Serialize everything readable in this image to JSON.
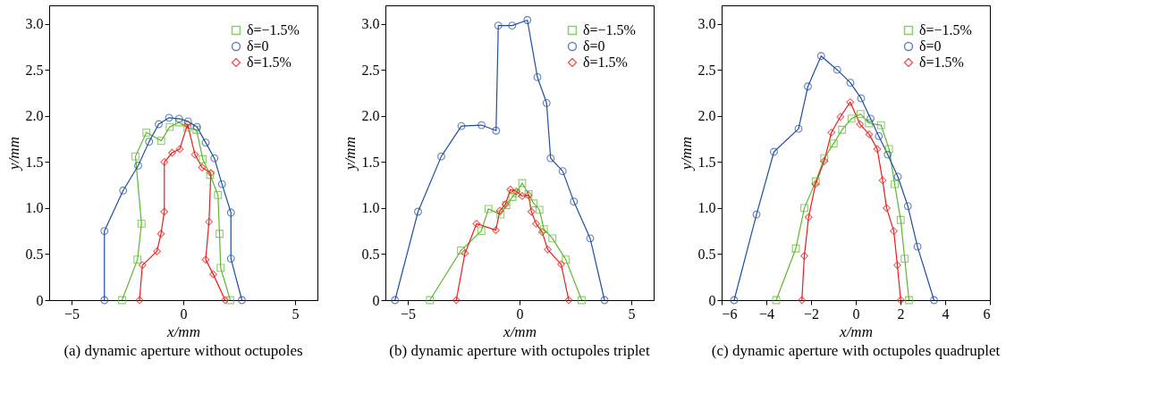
{
  "chart_data": [
    {
      "type": "line",
      "xlabel": "x/mm",
      "ylabel": "y/mm",
      "xlim": [
        -6,
        6
      ],
      "ylim": [
        0,
        3.2
      ],
      "xticks": [
        -5,
        0,
        5
      ],
      "yticks": [
        0,
        0.5,
        {
          "value": 1,
          "label": "1.0"
        },
        1.5,
        {
          "value": 2,
          "label": "2.0"
        },
        2.5,
        {
          "value": 3,
          "label": "3.0"
        }
      ],
      "grid": false,
      "legend": "top right",
      "line_style": "solid",
      "annotations": [
        "(a) dynamic aperture without octupoles"
      ],
      "series": [
        {
          "name": "δ=−1.5%",
          "color": "#5cb82e",
          "marker": "square",
          "x": [
            -2.74,
            -2.05,
            -1.87,
            -2.14,
            -1.65,
            -0.99,
            -0.61,
            -0.19,
            0.19,
            0.59,
            0.87,
            1.2,
            1.55,
            1.62,
            1.67,
            2.1
          ],
          "values": [
            0,
            0.44,
            0.83,
            1.56,
            1.82,
            1.73,
            1.88,
            1.93,
            1.87,
            1.85,
            1.53,
            1.36,
            1.14,
            0.72,
            0.35,
            0
          ]
        },
        {
          "name": "δ=0",
          "color": "#1f4fa0",
          "marker": "circle",
          "x": [
            -3.53,
            -3.53,
            -2.69,
            -2.02,
            -1.53,
            -1.1,
            -0.64,
            -0.19,
            0.21,
            0.61,
            1.0,
            1.39,
            1.73,
            2.13,
            2.13,
            2.62
          ],
          "values": [
            0,
            0.75,
            1.19,
            1.46,
            1.72,
            1.91,
            1.98,
            1.97,
            1.94,
            1.88,
            1.71,
            1.54,
            1.26,
            0.95,
            0.45,
            0
          ]
        },
        {
          "name": "δ=1.5%",
          "color": "#ee1c1c",
          "marker": "diamond",
          "x": [
            -1.96,
            -1.83,
            -1.18,
            -1.0,
            -0.85,
            -0.85,
            -0.5,
            -0.16,
            0.19,
            0.52,
            0.84,
            1.23,
            1.15,
            1.0,
            1.34,
            1.87
          ],
          "values": [
            0,
            0.38,
            0.53,
            0.72,
            0.96,
            1.5,
            1.6,
            1.64,
            1.91,
            1.58,
            1.44,
            1.38,
            0.85,
            0.44,
            0.28,
            0
          ]
        }
      ]
    },
    {
      "type": "line",
      "xlabel": "x/mm",
      "ylabel": "y/mm",
      "xlim": [
        -6,
        6
      ],
      "ylim": [
        0,
        3.2
      ],
      "xticks": [
        -5,
        0,
        5
      ],
      "yticks": [
        0,
        0.5,
        {
          "value": 1,
          "label": "1.0"
        },
        1.5,
        {
          "value": 2,
          "label": "2.0"
        },
        2.5,
        {
          "value": 3,
          "label": "3.0"
        }
      ],
      "grid": false,
      "legend": "top right",
      "line_style": "solid",
      "annotations": [
        "(b) dynamic aperture with octupoles triplet"
      ],
      "series": [
        {
          "name": "δ=−1.5%",
          "color": "#5cb82e",
          "marker": "square",
          "x": [
            -4.01,
            -2.62,
            -1.71,
            -1.39,
            -0.85,
            -0.59,
            -0.32,
            -0.16,
            0.12,
            0.4,
            0.63,
            0.89,
            1.09,
            1.47,
            2.07,
            2.78
          ],
          "values": [
            0,
            0.54,
            0.75,
            0.99,
            0.93,
            1.03,
            1.12,
            1.16,
            1.27,
            1.15,
            1.05,
            0.98,
            0.77,
            0.67,
            0.44,
            0
          ]
        },
        {
          "name": "δ=0",
          "color": "#1f4fa0",
          "marker": "circle",
          "x": [
            -5.57,
            -4.54,
            -3.5,
            -2.6,
            -1.7,
            -1.05,
            -0.95,
            -0.33,
            0.35,
            0.8,
            1.21,
            1.39,
            1.93,
            2.43,
            3.16,
            3.8
          ],
          "values": [
            0,
            0.96,
            1.56,
            1.89,
            1.9,
            1.84,
            2.98,
            2.98,
            3.04,
            2.42,
            2.14,
            1.54,
            1.4,
            1.07,
            0.67,
            0
          ]
        },
        {
          "name": "δ=1.5%",
          "color": "#ee1c1c",
          "marker": "diamond",
          "x": [
            -2.83,
            -2.44,
            -1.92,
            -1.06,
            -0.88,
            -0.63,
            -0.41,
            -0.14,
            0.12,
            0.4,
            0.53,
            0.74,
            1.01,
            1.26,
            1.86,
            2.2
          ],
          "values": [
            0,
            0.51,
            0.83,
            0.76,
            0.97,
            1.04,
            1.2,
            1.18,
            1.13,
            1.14,
            0.96,
            0.83,
            0.74,
            0.55,
            0.39,
            0
          ]
        }
      ]
    },
    {
      "type": "line",
      "xlabel": "x/mm",
      "ylabel": "y/mm",
      "xlim": [
        -6,
        6
      ],
      "ylim": [
        0,
        3.2
      ],
      "xticks": [
        -6,
        -4,
        -2,
        0,
        2,
        4,
        6
      ],
      "yticks": [
        0,
        0.5,
        {
          "value": 1,
          "label": "1.0"
        },
        1.5,
        {
          "value": 2,
          "label": "2.0"
        },
        2.5,
        {
          "value": 3,
          "label": "3.0"
        }
      ],
      "grid": false,
      "legend": "top right",
      "line_style": "solid",
      "annotations": [
        "(c) dynamic aperture with octupoles quadruplet"
      ],
      "series": [
        {
          "name": "δ=−1.5%",
          "color": "#5cb82e",
          "marker": "square",
          "x": [
            -3.56,
            -2.68,
            -2.3,
            -1.79,
            -1.41,
            -0.99,
            -0.61,
            -0.19,
            0.21,
            0.59,
            1.13,
            1.49,
            1.74,
            2.01,
            2.19,
            2.38
          ],
          "values": [
            0,
            0.56,
            1.0,
            1.29,
            1.54,
            1.7,
            1.85,
            1.97,
            2.02,
            1.92,
            1.9,
            1.64,
            1.26,
            0.87,
            0.45,
            0
          ]
        },
        {
          "name": "δ=0",
          "color": "#1f4fa0",
          "marker": "circle",
          "x": [
            -5.44,
            -4.44,
            -3.66,
            -2.56,
            -2.14,
            -1.55,
            -0.83,
            -0.24,
            0.24,
            0.66,
            1.03,
            1.43,
            1.88,
            2.33,
            2.76,
            3.5
          ],
          "values": [
            0,
            0.93,
            1.61,
            1.86,
            2.32,
            2.65,
            2.5,
            2.36,
            2.19,
            1.97,
            1.78,
            1.58,
            1.34,
            1.02,
            0.58,
            0
          ]
        },
        {
          "name": "δ=1.5%",
          "color": "#ee1c1c",
          "marker": "diamond",
          "x": [
            -2.41,
            -2.3,
            -2.11,
            -1.8,
            -1.41,
            -1.09,
            -0.69,
            -0.25,
            0.19,
            0.6,
            0.96,
            1.2,
            1.38,
            1.7,
            1.86,
            2.01
          ],
          "values": [
            0,
            0.48,
            0.9,
            1.26,
            1.51,
            1.82,
            1.99,
            2.15,
            1.91,
            1.8,
            1.64,
            1.3,
            1.0,
            0.75,
            0.38,
            0
          ]
        }
      ]
    }
  ]
}
